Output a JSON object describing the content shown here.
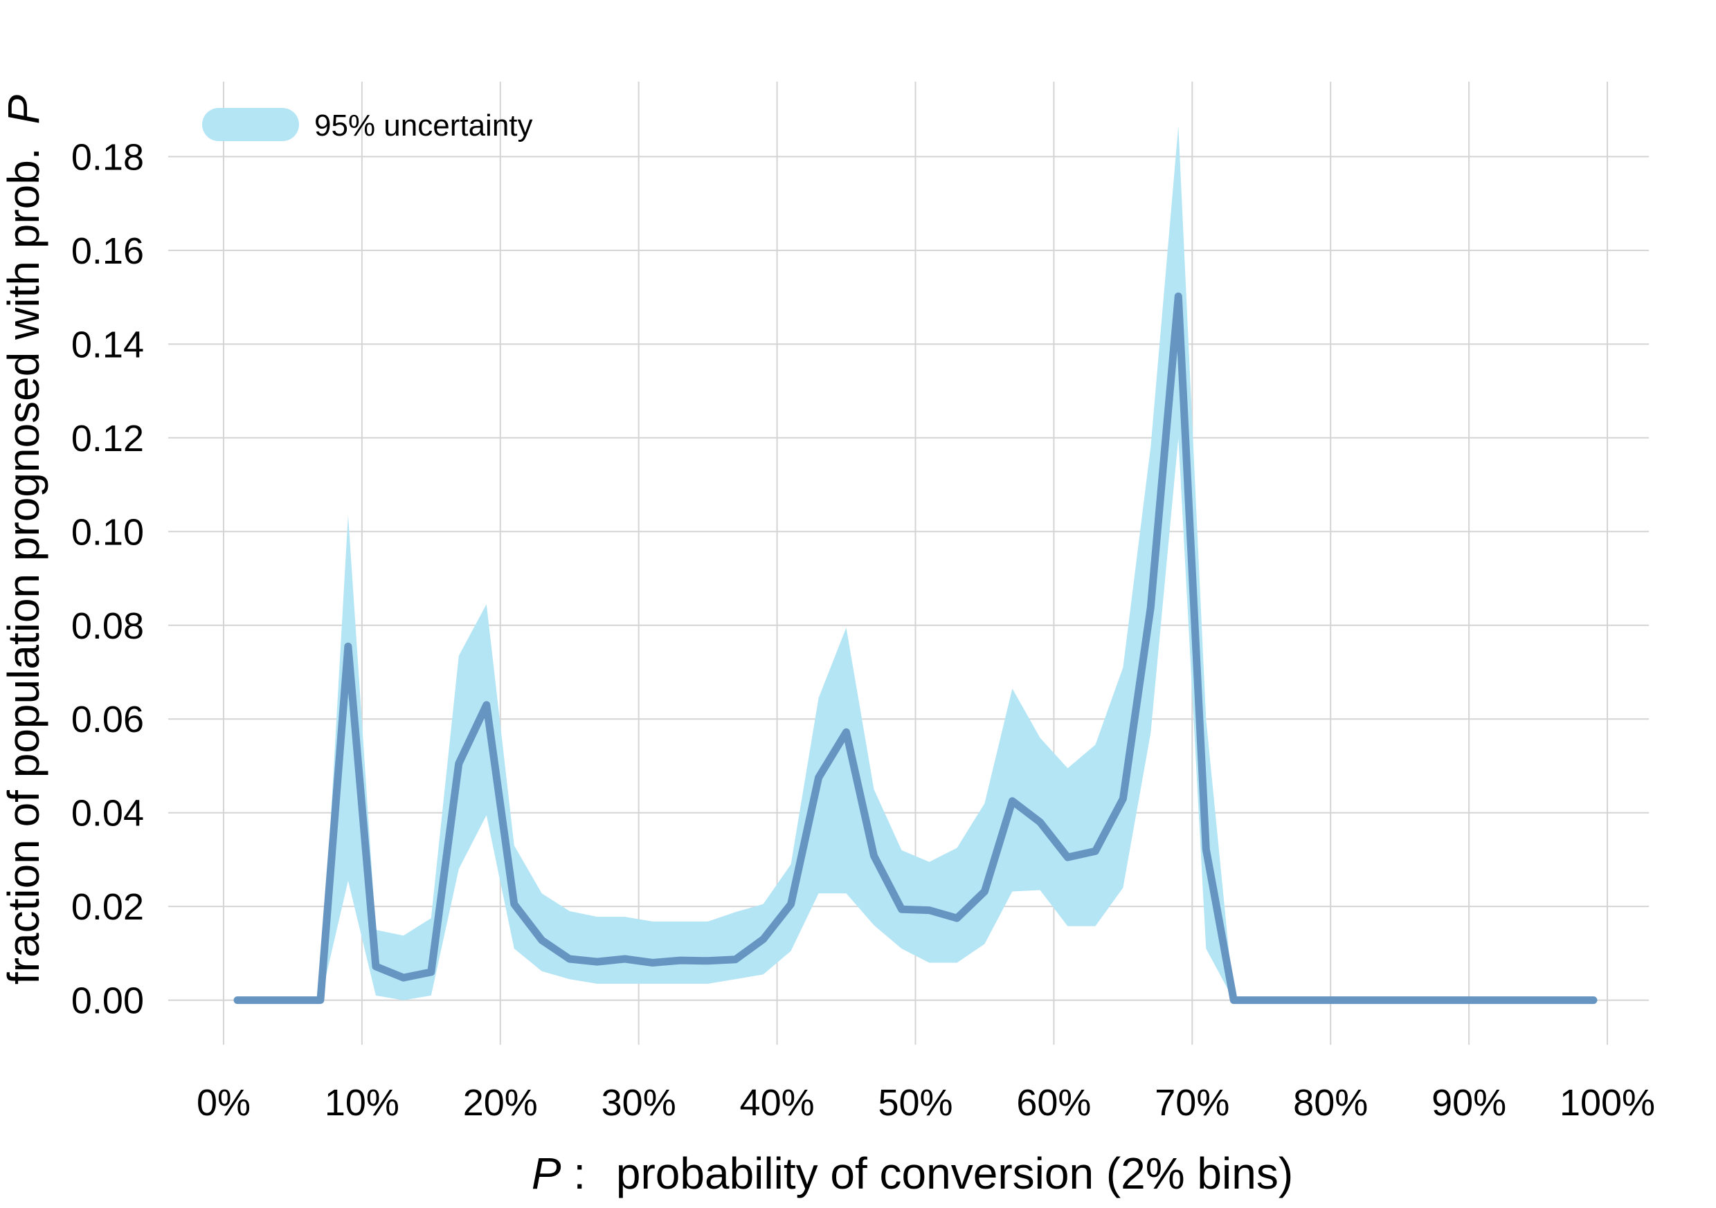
{
  "chart_data": {
    "type": "line",
    "title": "",
    "xlabel": {
      "variable": "P",
      "separator": ":",
      "text": "probability of conversion (2% bins)"
    },
    "ylabel": {
      "text": "fraction of population prognosed with prob.",
      "variable": "P"
    },
    "xlim": [
      -0.04,
      1.03
    ],
    "ylim": [
      -0.0095,
      0.196
    ],
    "x_ticks": [
      0,
      0.1,
      0.2,
      0.3,
      0.4,
      0.5,
      0.6,
      0.7,
      0.8,
      0.9,
      1.0
    ],
    "x_tick_labels": [
      "0%",
      "10%",
      "20%",
      "30%",
      "40%",
      "50%",
      "60%",
      "70%",
      "80%",
      "90%",
      "100%"
    ],
    "y_ticks": [
      0,
      0.02,
      0.04,
      0.06,
      0.08,
      0.1,
      0.12,
      0.14,
      0.16,
      0.18
    ],
    "y_tick_labels": [
      "0.00",
      "0.02",
      "0.04",
      "0.06",
      "0.08",
      "0.10",
      "0.12",
      "0.14",
      "0.16",
      "0.18"
    ],
    "grid": true,
    "legend": {
      "placement": "top-left",
      "entries": [
        {
          "label": "95% uncertainty",
          "color": "#b3e5f5"
        }
      ]
    },
    "line_color": "#6795c1",
    "band_color": "#b3e5f5",
    "series": [
      {
        "x": [
          0.01,
          0.03,
          0.05,
          0.07,
          0.09,
          0.11,
          0.13,
          0.15,
          0.17,
          0.19,
          0.21,
          0.23,
          0.25,
          0.27,
          0.29,
          0.31,
          0.33,
          0.35,
          0.37,
          0.39,
          0.41,
          0.43,
          0.45,
          0.47,
          0.49,
          0.51,
          0.53,
          0.55,
          0.57,
          0.59,
          0.61,
          0.63,
          0.65,
          0.67,
          0.69,
          0.71,
          0.73,
          0.75,
          0.77,
          0.79,
          0.81,
          0.83,
          0.85,
          0.87,
          0.89,
          0.91,
          0.93,
          0.95,
          0.97,
          0.99
        ],
        "y": [
          0,
          0,
          0,
          0,
          0.0755,
          0.0072,
          0.0048,
          0.006,
          0.0505,
          0.063,
          0.0205,
          0.0128,
          0.0088,
          0.0082,
          0.0088,
          0.008,
          0.0085,
          0.0084,
          0.0087,
          0.013,
          0.0205,
          0.0475,
          0.0572,
          0.0308,
          0.0194,
          0.0192,
          0.0175,
          0.0232,
          0.0425,
          0.038,
          0.0305,
          0.0318,
          0.043,
          0.0838,
          0.1502,
          0.0322,
          0,
          0,
          0,
          0,
          0,
          0,
          0,
          0,
          0,
          0,
          0,
          0,
          0,
          0
        ],
        "lower": [
          0,
          0,
          0,
          0,
          0.0255,
          0.001,
          0.0,
          0.001,
          0.028,
          0.0395,
          0.011,
          0.0062,
          0.0045,
          0.0035,
          0.0035,
          0.0035,
          0.0035,
          0.0035,
          0.0045,
          0.0055,
          0.0105,
          0.0228,
          0.0228,
          0.016,
          0.011,
          0.008,
          0.008,
          0.012,
          0.0232,
          0.0235,
          0.0158,
          0.0158,
          0.024,
          0.057,
          0.12,
          0.011,
          0,
          0,
          0,
          0,
          0,
          0,
          0,
          0,
          0,
          0,
          0,
          0,
          0,
          0
        ],
        "upper": [
          0,
          0,
          0,
          0,
          0.1035,
          0.015,
          0.0138,
          0.0175,
          0.0735,
          0.0845,
          0.033,
          0.0228,
          0.019,
          0.0178,
          0.0178,
          0.0168,
          0.0168,
          0.0168,
          0.0188,
          0.0205,
          0.029,
          0.0645,
          0.0795,
          0.045,
          0.032,
          0.0295,
          0.0325,
          0.042,
          0.0665,
          0.056,
          0.0495,
          0.0545,
          0.071,
          0.118,
          0.1865,
          0.06,
          0,
          0,
          0,
          0,
          0,
          0,
          0,
          0,
          0,
          0,
          0,
          0,
          0,
          0
        ]
      }
    ]
  }
}
